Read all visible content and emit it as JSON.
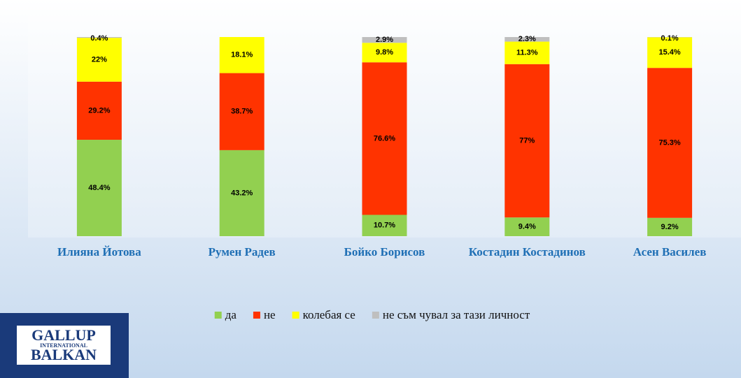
{
  "chart_data": {
    "type": "stacked_bar",
    "categories": [
      "Илияна Йотова",
      "Румен Радев",
      "Бойко Борисов",
      "Костадин Костадинов",
      "Асен Василев"
    ],
    "series": [
      {
        "name": "да",
        "color": "#92d050",
        "values": [
          48.4,
          43.2,
          10.7,
          9.4,
          9.2
        ],
        "value_labels": [
          "48.4%",
          "43.2%",
          "10.7%",
          "9.4%",
          "9.2%"
        ]
      },
      {
        "name": "не",
        "color": "#ff3300",
        "values": [
          29.2,
          38.7,
          76.6,
          77,
          75.3
        ],
        "value_labels": [
          "29.2%",
          "38.7%",
          "76.6%",
          "77%",
          "75.3%"
        ]
      },
      {
        "name": "колебая се",
        "color": "#ffff00",
        "values": [
          22,
          18.1,
          9.8,
          11.3,
          15.4
        ],
        "value_labels": [
          "22%",
          "18.1%",
          "9.8%",
          "11.3%",
          "15.4%"
        ]
      },
      {
        "name": "не съм чувал за тази личност",
        "color": "#bfbfbf",
        "values": [
          0.4,
          null,
          2.9,
          2.3,
          0.1
        ],
        "value_labels": [
          "0.4%",
          null,
          "2.9%",
          "2.3%",
          "0.1%"
        ]
      }
    ],
    "ylim": [
      0,
      100
    ]
  },
  "logo": {
    "line1": "GALLUP",
    "line2": "INTERNATIONAL",
    "line3": "BALKAN"
  }
}
